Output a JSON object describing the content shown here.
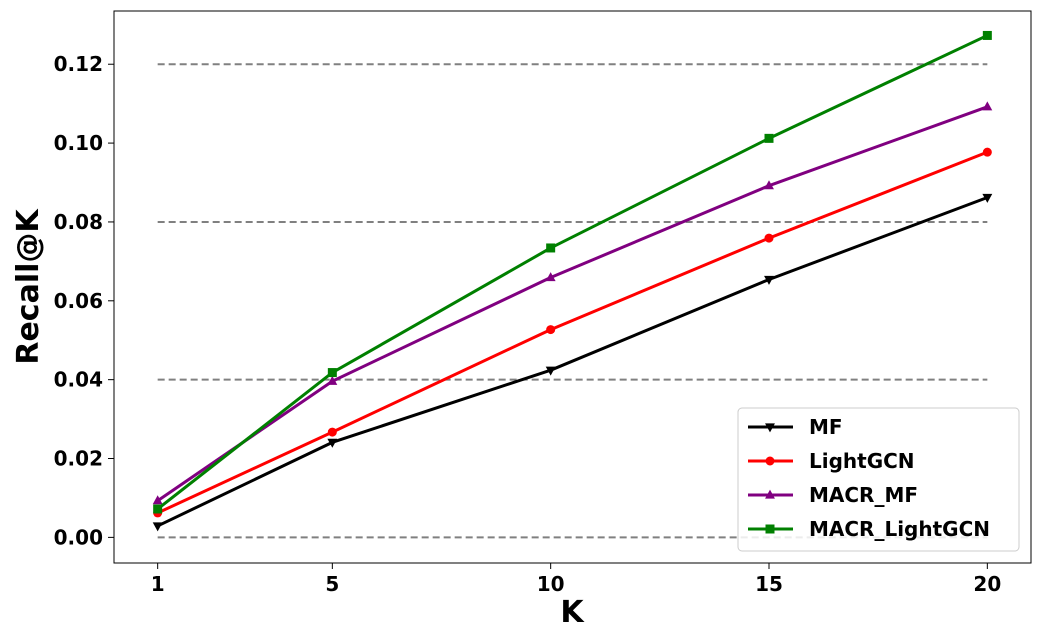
{
  "chart_data": {
    "type": "line",
    "title": "",
    "xlabel": "K",
    "ylabel": "Recall@K",
    "x": [
      1,
      5,
      10,
      15,
      20
    ],
    "x_tick_labels": [
      "1",
      "5",
      "10",
      "15",
      "20"
    ],
    "y_ticks": [
      0.0,
      0.02,
      0.04,
      0.06,
      0.08,
      0.1,
      0.12
    ],
    "y_tick_labels": [
      "0.00",
      "0.02",
      "0.04",
      "0.06",
      "0.08",
      "0.10",
      "0.12"
    ],
    "xlim": [
      0,
      21
    ],
    "ylim": [
      -0.0065,
      0.1335
    ],
    "reference_lines": [
      0.0,
      0.04,
      0.08,
      0.12
    ],
    "reference_line_color": "#808080",
    "grid": false,
    "legend_position": "lower-right",
    "series": [
      {
        "name": "MF",
        "color": "#000000",
        "marker": "triangle-down",
        "values": [
          0.0029,
          0.0241,
          0.0424,
          0.0654,
          0.0862
        ]
      },
      {
        "name": "LightGCN",
        "color": "#ff0000",
        "marker": "circle",
        "values": [
          0.0062,
          0.0267,
          0.0527,
          0.0759,
          0.0977
        ]
      },
      {
        "name": "MACR_MF",
        "color": "#800080",
        "marker": "triangle-up",
        "values": [
          0.0093,
          0.0396,
          0.0659,
          0.0892,
          0.1092
        ]
      },
      {
        "name": "MACR_LightGCN",
        "color": "#008000",
        "marker": "square",
        "values": [
          0.0072,
          0.0418,
          0.0734,
          0.1012,
          0.1273
        ]
      }
    ]
  }
}
